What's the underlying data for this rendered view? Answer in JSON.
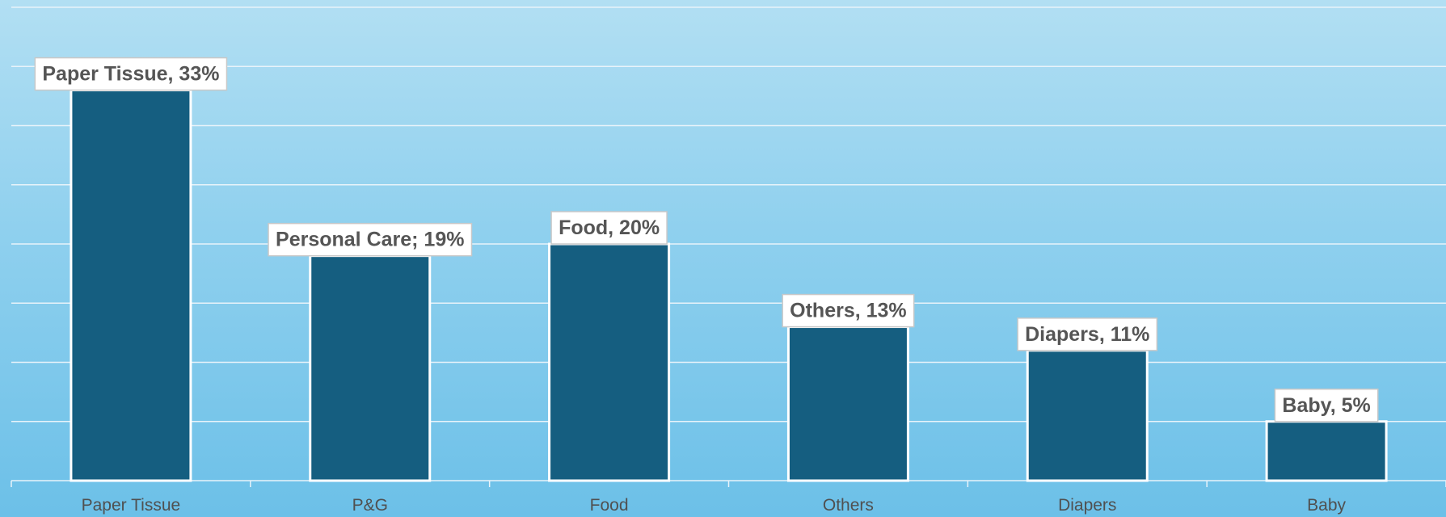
{
  "chart_data": {
    "type": "bar",
    "categories": [
      "Paper Tissue",
      "P&G",
      "Food",
      "Others",
      "Diapers",
      "Baby"
    ],
    "values": [
      33,
      19,
      20,
      13,
      11,
      5
    ],
    "data_labels": [
      "Paper Tissue, 33%",
      "Personal Care; 19%",
      "Food, 20%",
      "Others, 13%",
      "Diapers, 11%",
      "Baby, 5%"
    ],
    "title": "",
    "xlabel": "",
    "ylabel": "",
    "ylim": [
      0,
      40
    ],
    "grid": true,
    "legend": "none",
    "colors": {
      "bar": "#155e80",
      "bar_outline": "#ffffff",
      "grid": "#e8f3fa",
      "background_top": "#b2dff3",
      "background_bottom": "#6cc0e8"
    }
  }
}
